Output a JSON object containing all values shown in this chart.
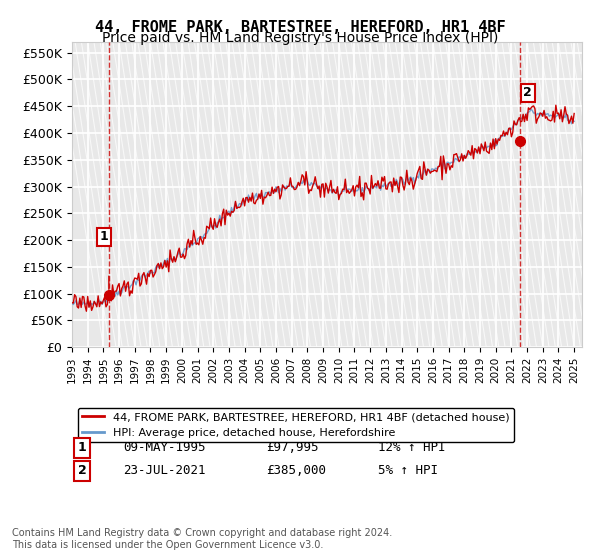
{
  "title": "44, FROME PARK, BARTESTREE, HEREFORD, HR1 4BF",
  "subtitle": "Price paid vs. HM Land Registry's House Price Index (HPI)",
  "ylim": [
    0,
    570000
  ],
  "yticks": [
    0,
    50000,
    100000,
    150000,
    200000,
    250000,
    300000,
    350000,
    400000,
    450000,
    500000,
    550000
  ],
  "ytick_labels": [
    "£0",
    "£50K",
    "£100K",
    "£150K",
    "£200K",
    "£250K",
    "£300K",
    "£350K",
    "£400K",
    "£450K",
    "£500K",
    "£550K"
  ],
  "legend_line1": "44, FROME PARK, BARTESTREE, HEREFORD, HR1 4BF (detached house)",
  "legend_line2": "HPI: Average price, detached house, Herefordshire",
  "annotation1_label": "1",
  "annotation1_date": "09-MAY-1995",
  "annotation1_price": "£97,995",
  "annotation1_hpi": "12% ↑ HPI",
  "annotation2_label": "2",
  "annotation2_date": "23-JUL-2021",
  "annotation2_price": "£385,000",
  "annotation2_hpi": "5% ↑ HPI",
  "copyright": "Contains HM Land Registry data © Crown copyright and database right 2024.\nThis data is licensed under the Open Government Licence v3.0.",
  "line_color_price": "#cc0000",
  "line_color_hpi": "#6699cc",
  "marker_color": "#cc0000",
  "annotation_box_color": "#cc0000",
  "background_hatch_color": "#e8e8e8",
  "grid_color": "#ffffff",
  "title_fontsize": 11,
  "subtitle_fontsize": 10,
  "axis_fontsize": 9
}
